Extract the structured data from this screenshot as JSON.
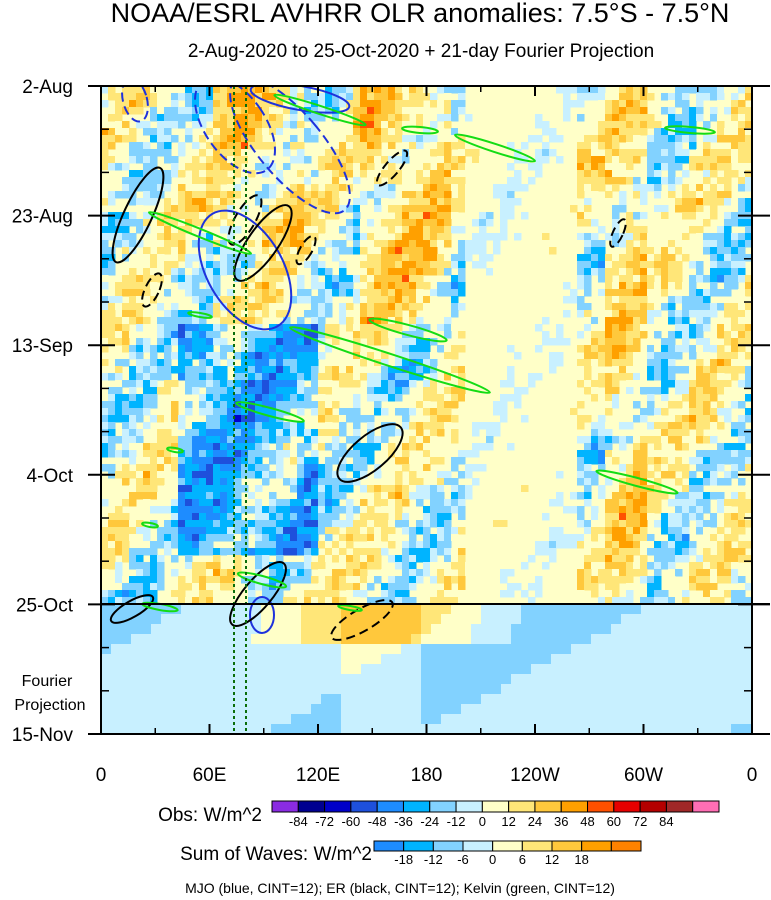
{
  "chart_data": {
    "type": "heatmap",
    "title": "NOAA/ESRL AVHRR OLR anomalies: 7.5°S - 7.5°N",
    "subtitle": "2-Aug-2020 to 25-Oct-2020 + 21-day Fourier Projection",
    "x_ticks": [
      "0",
      "60E",
      "120E",
      "180",
      "120W",
      "60W",
      "0"
    ],
    "y_ticks": [
      "2-Aug",
      "23-Aug",
      "13-Sep",
      "4-Oct",
      "25-Oct",
      "15-Nov"
    ],
    "projection_label": [
      "Fourier",
      "Projection"
    ],
    "obs_legend": {
      "label": "Obs: W/m^2",
      "levels": [
        "-84",
        "-72",
        "-60",
        "-48",
        "-36",
        "-24",
        "-12",
        "0",
        "12",
        "24",
        "36",
        "48",
        "60",
        "72",
        "84"
      ],
      "colors": [
        "#8a2be2",
        "#000090",
        "#0000c8",
        "#1e50dc",
        "#1e8cff",
        "#00b4ff",
        "#82d2ff",
        "#c8f0ff",
        "#ffffc8",
        "#ffe678",
        "#ffc83c",
        "#ffa000",
        "#ff5000",
        "#e60000",
        "#b40000",
        "#a02828",
        "#ff6eb4"
      ]
    },
    "waves_legend": {
      "label": "Sum of Waves: W/m^2",
      "levels": [
        "-18",
        "-12",
        "-6",
        "0",
        "6",
        "12",
        "18"
      ],
      "colors": [
        "#1e8cff",
        "#00b4ff",
        "#82d2ff",
        "#c8f0ff",
        "#ffffc8",
        "#ffe678",
        "#ffc83c",
        "#ffa000",
        "#ff8200"
      ]
    },
    "footnote": "MJO (blue, CINT=12); ER (black, CINT=12); Kelvin (green, CINT=12)",
    "series": [
      {
        "name": "MJO",
        "color": "#1e32dc"
      },
      {
        "name": "ER",
        "color": "#000000"
      },
      {
        "name": "Kelvin",
        "color": "#14dc14"
      }
    ]
  }
}
